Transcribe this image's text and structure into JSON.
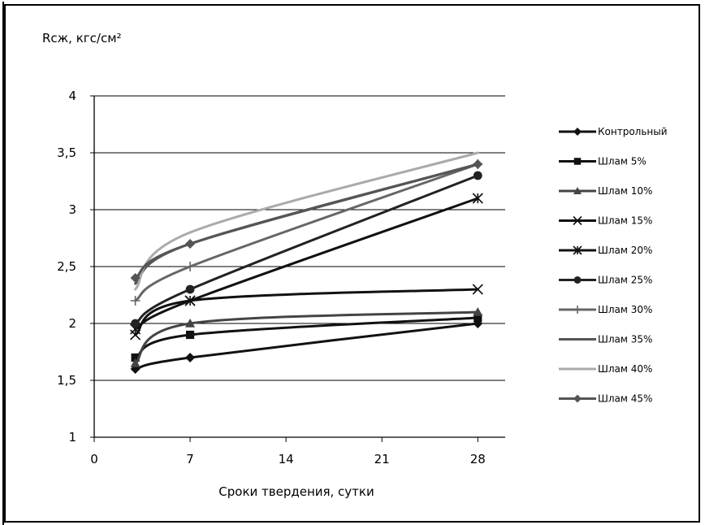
{
  "chart_data": {
    "type": "line",
    "ylabel": "Rсж, кгс/см²",
    "xlabel": "Сроки твердения,  сутки",
    "x": [
      3,
      7,
      28
    ],
    "xlim": [
      0,
      30
    ],
    "xticks": [
      0,
      7,
      14,
      21,
      28
    ],
    "ylim": [
      1,
      4
    ],
    "yticks": [
      1,
      1.5,
      2,
      2.5,
      3,
      3.5,
      4
    ],
    "ytick_labels": [
      "1",
      "1,5",
      "2",
      "2,5",
      "3",
      "3,5",
      "4"
    ],
    "grid": "horizontal",
    "legend_position": "right",
    "series": [
      {
        "name": "Контрольный",
        "values": [
          1.6,
          1.7,
          2.0
        ],
        "color": "#111111",
        "marker": "diamond"
      },
      {
        "name": "Шлам 5%",
        "values": [
          1.7,
          1.9,
          2.05
        ],
        "color": "#111111",
        "marker": "square"
      },
      {
        "name": "Шлам 10%",
        "values": [
          1.65,
          2.0,
          2.1
        ],
        "color": "#444444",
        "marker": "triangle"
      },
      {
        "name": "Шлам 15%",
        "values": [
          1.9,
          2.2,
          2.3
        ],
        "color": "#111111",
        "marker": "x"
      },
      {
        "name": "Шлам 20%",
        "values": [
          1.95,
          2.2,
          3.1
        ],
        "color": "#111111",
        "marker": "star"
      },
      {
        "name": "Шлам 25%",
        "values": [
          2.0,
          2.3,
          3.3
        ],
        "color": "#222222",
        "marker": "circle"
      },
      {
        "name": "Шлам 30%",
        "values": [
          2.2,
          2.5,
          3.4
        ],
        "color": "#666666",
        "marker": "plus"
      },
      {
        "name": "Шлам 35%",
        "values": [
          2.35,
          2.7,
          3.4
        ],
        "color": "#555555",
        "marker": "none"
      },
      {
        "name": "Шлам 40%",
        "values": [
          2.3,
          2.8,
          3.5
        ],
        "color": "#aaaaaa",
        "marker": "none"
      },
      {
        "name": "Шлам 45%",
        "values": [
          2.4,
          2.7,
          3.4
        ],
        "color": "#555555",
        "marker": "diamond"
      }
    ]
  }
}
